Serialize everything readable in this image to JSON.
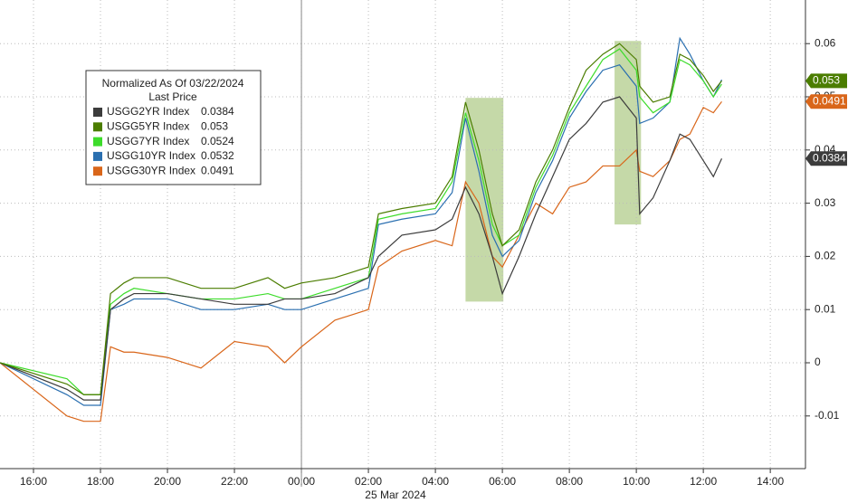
{
  "chart_data": {
    "type": "line",
    "legend_title": "Normalized As Of 03/22/2024",
    "legend_subtitle": "Last Price",
    "x_sublabel": "25 Mar 2024",
    "x": [
      15,
      17,
      17.5,
      18,
      18.3,
      18.7,
      19,
      20,
      21,
      22,
      23,
      23.5,
      24,
      25,
      26,
      26.3,
      27,
      28,
      28.5,
      28.9,
      29.3,
      29.7,
      30,
      30.5,
      31,
      31.5,
      32,
      32.5,
      33,
      33.5,
      34,
      34.1,
      34.5,
      35,
      35.3,
      35.6,
      36,
      36.3,
      36.55
    ],
    "series": [
      {
        "name": "USGG2YR Index",
        "color": "#3c3c3c",
        "last_value": 0.0384,
        "end_tag": true,
        "values": [
          0,
          -0.005,
          -0.007,
          -0.007,
          0.01,
          0.012,
          0.013,
          0.013,
          0.012,
          0.011,
          0.011,
          0.012,
          0.012,
          0.013,
          0.016,
          0.02,
          0.024,
          0.025,
          0.027,
          0.033,
          0.028,
          0.02,
          0.013,
          0.02,
          0.028,
          0.035,
          0.042,
          0.045,
          0.049,
          0.05,
          0.046,
          0.028,
          0.031,
          0.038,
          0.043,
          0.042,
          0.038,
          0.035,
          0.0384
        ]
      },
      {
        "name": "USGG5YR Index",
        "color": "#4b7d00",
        "last_value": 0.053,
        "end_tag": true,
        "values": [
          0,
          -0.004,
          -0.006,
          -0.006,
          0.013,
          0.015,
          0.016,
          0.016,
          0.014,
          0.014,
          0.016,
          0.014,
          0.015,
          0.016,
          0.018,
          0.028,
          0.029,
          0.03,
          0.035,
          0.049,
          0.04,
          0.028,
          0.022,
          0.025,
          0.034,
          0.04,
          0.048,
          0.055,
          0.058,
          0.06,
          0.057,
          0.052,
          0.049,
          0.05,
          0.058,
          0.057,
          0.054,
          0.051,
          0.053
        ]
      },
      {
        "name": "USGG7YR Index",
        "color": "#3ddc2b",
        "last_value": 0.0524,
        "end_tag": false,
        "values": [
          0,
          -0.003,
          -0.006,
          -0.006,
          0.011,
          0.013,
          0.014,
          0.013,
          0.012,
          0.012,
          0.013,
          0.012,
          0.012,
          0.014,
          0.016,
          0.027,
          0.028,
          0.029,
          0.034,
          0.047,
          0.038,
          0.026,
          0.022,
          0.024,
          0.033,
          0.039,
          0.047,
          0.052,
          0.057,
          0.059,
          0.055,
          0.05,
          0.047,
          0.049,
          0.057,
          0.056,
          0.053,
          0.05,
          0.0524
        ]
      },
      {
        "name": "USGG10YR Index",
        "color": "#2a6fb0",
        "last_value": 0.0532,
        "end_tag": false,
        "values": [
          0,
          -0.006,
          -0.008,
          -0.008,
          0.01,
          0.011,
          0.012,
          0.012,
          0.01,
          0.01,
          0.011,
          0.01,
          0.01,
          0.012,
          0.014,
          0.026,
          0.027,
          0.028,
          0.032,
          0.046,
          0.036,
          0.024,
          0.02,
          0.023,
          0.032,
          0.038,
          0.046,
          0.051,
          0.055,
          0.056,
          0.052,
          0.045,
          0.046,
          0.049,
          0.061,
          0.058,
          0.053,
          0.05,
          0.0532
        ]
      },
      {
        "name": "USGG30YR Index",
        "color": "#d9661a",
        "last_value": 0.0491,
        "end_tag": true,
        "values": [
          0,
          -0.01,
          -0.011,
          -0.011,
          0.003,
          0.002,
          0.002,
          0.001,
          -0.001,
          0.004,
          0.003,
          0.0,
          0.003,
          0.008,
          0.01,
          0.018,
          0.021,
          0.023,
          0.022,
          0.034,
          0.03,
          0.02,
          0.018,
          0.024,
          0.03,
          0.028,
          0.033,
          0.034,
          0.037,
          0.037,
          0.04,
          0.036,
          0.035,
          0.038,
          0.042,
          0.043,
          0.048,
          0.047,
          0.0491
        ]
      }
    ],
    "highlight_regions": [
      {
        "x": [
          28.9,
          30.03
        ],
        "y": [
          0.0115,
          0.0498
        ],
        "color": "#c5d9a8"
      },
      {
        "x": [
          33.35,
          34.14
        ],
        "y": [
          0.026,
          0.0605
        ],
        "color": "#c5d9a8"
      }
    ],
    "day_divider": 24,
    "xlim": [
      15,
      39.05
    ],
    "xticks": [
      {
        "value": 16,
        "label": "16:00"
      },
      {
        "value": 18,
        "label": "18:00"
      },
      {
        "value": 20,
        "label": "20:00"
      },
      {
        "value": 22,
        "label": "22:00"
      },
      {
        "value": 24,
        "label": "00:00"
      },
      {
        "value": 26,
        "label": "02:00"
      },
      {
        "value": 28,
        "label": "04:00"
      },
      {
        "value": 30,
        "label": "06:00"
      },
      {
        "value": 32,
        "label": "08:00"
      },
      {
        "value": 34,
        "label": "10:00"
      },
      {
        "value": 36,
        "label": "12:00"
      },
      {
        "value": 38,
        "label": "14:00"
      }
    ],
    "ylim": [
      -0.0199,
      0.0682
    ],
    "yticks": [
      -0.01,
      0.0,
      0.01,
      0.02,
      0.03,
      0.04,
      0.05,
      0.06
    ],
    "grid": true
  }
}
